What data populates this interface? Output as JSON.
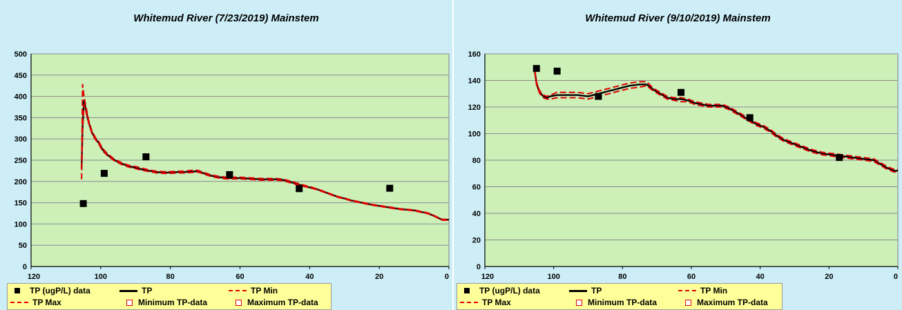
{
  "chart_data": [
    {
      "type": "line",
      "title": "Whitemud River (7/23/2019) Mainstem",
      "xlim": [
        120,
        0
      ],
      "ylim": [
        0,
        500
      ],
      "x_ticks": [
        "120",
        "100",
        "80",
        "60",
        "40",
        "20",
        "0"
      ],
      "y_ticks": [
        "0",
        "50",
        "100",
        "150",
        "200",
        "250",
        "300",
        "350",
        "400",
        "450",
        "500"
      ],
      "grid": true,
      "legend_position": "bottom",
      "legend": [
        "TP (ugP/L) data",
        "TP",
        "TP Min",
        "TP Max",
        "Minimum TP-data",
        "Maximum TP-data"
      ],
      "colors": {
        "plot_bg": "#ccf0b8",
        "panel_bg": "#cdeef7",
        "tp": "#000000",
        "tp_minmax": "#e00000",
        "legend_bg": "#ffff99"
      },
      "series": [
        {
          "name": "TP (ugP/L) data",
          "kind": "scatter",
          "x": [
            105,
            99,
            87,
            63,
            43,
            17
          ],
          "y": [
            148,
            219,
            258,
            216,
            183,
            184
          ]
        },
        {
          "name": "TP",
          "kind": "line",
          "x": [
            105.5,
            105.2,
            104.8,
            104.3,
            103.5,
            102.5,
            101.5,
            100.5,
            99.5,
            98,
            96,
            94,
            92,
            90,
            88,
            86,
            84,
            82,
            80,
            78,
            76,
            74,
            72,
            70,
            68,
            66,
            64,
            62,
            60,
            58,
            56,
            54,
            52,
            50,
            48,
            46,
            44,
            42,
            40,
            38,
            36,
            34,
            32,
            30,
            28,
            25,
            22,
            18,
            14,
            10,
            6,
            4,
            2,
            0
          ],
          "y": [
            230,
            330,
            390,
            370,
            340,
            315,
            300,
            290,
            275,
            262,
            250,
            242,
            236,
            232,
            228,
            225,
            222,
            221,
            221,
            222,
            222,
            223,
            224,
            218,
            213,
            210,
            208,
            208,
            208,
            207,
            206,
            205,
            205,
            205,
            204,
            200,
            195,
            190,
            186,
            182,
            176,
            170,
            164,
            160,
            155,
            150,
            145,
            140,
            135,
            132,
            125,
            118,
            110,
            110
          ]
        },
        {
          "name": "TP Min",
          "kind": "line",
          "x": [
            105.5,
            105.2,
            104.8,
            104.3,
            103.5,
            102.5,
            101.5,
            100.5,
            99.5,
            98,
            96,
            94,
            92,
            90,
            88,
            86,
            84,
            82,
            80,
            78,
            76,
            74,
            72,
            70,
            68,
            66,
            64,
            62,
            60,
            58,
            56,
            54,
            52,
            50,
            48,
            46,
            44,
            42,
            40,
            38,
            36,
            34,
            32,
            30,
            28,
            25,
            22,
            18,
            14,
            10,
            6,
            4,
            2,
            0
          ],
          "y": [
            205,
            320,
            380,
            365,
            338,
            312,
            298,
            287,
            272,
            260,
            248,
            240,
            234,
            230,
            226,
            223,
            220,
            219,
            219,
            220,
            220,
            221,
            222,
            216,
            211,
            208,
            206,
            206,
            206,
            205,
            204,
            203,
            203,
            203,
            202,
            198,
            193,
            189,
            185,
            181,
            175,
            169,
            163,
            159,
            154,
            149,
            144,
            139,
            134,
            131,
            124,
            117,
            109,
            109
          ]
        },
        {
          "name": "TP Max",
          "kind": "line",
          "x": [
            105.5,
            105.2,
            104.8,
            104.3,
            103.5,
            102.5,
            101.5,
            100.5,
            99.5,
            98,
            96,
            94,
            92,
            90,
            88,
            86,
            84,
            82,
            80,
            78,
            76,
            74,
            72,
            70,
            68,
            66,
            64,
            62,
            60,
            58,
            56,
            54,
            52,
            50,
            48,
            46,
            44,
            42,
            40,
            38,
            36,
            34,
            32,
            30,
            28,
            25,
            22,
            18,
            14,
            10,
            6,
            4,
            2,
            0
          ],
          "y": [
            230,
            428,
            400,
            378,
            345,
            318,
            303,
            293,
            278,
            265,
            252,
            244,
            238,
            235,
            231,
            227,
            224,
            223,
            223,
            224,
            224,
            226,
            226,
            220,
            215,
            212,
            210,
            210,
            210,
            209,
            208,
            207,
            207,
            207,
            206,
            202,
            197,
            192,
            188,
            183,
            177,
            171,
            165,
            161,
            156,
            151,
            146,
            141,
            136,
            133,
            126,
            119,
            111,
            111
          ]
        }
      ]
    },
    {
      "type": "line",
      "title": "Whitemud River (9/10/2019) Mainstem",
      "xlim": [
        120,
        0
      ],
      "ylim": [
        0,
        160
      ],
      "x_ticks": [
        "120",
        "100",
        "80",
        "60",
        "40",
        "20",
        "0"
      ],
      "y_ticks": [
        "0",
        "20",
        "40",
        "60",
        "80",
        "100",
        "120",
        "140",
        "160"
      ],
      "grid": true,
      "legend_position": "bottom",
      "legend": [
        "TP (ugP/L) data",
        "TP",
        "TP Min",
        "TP Max",
        "Minimum TP-data",
        "Maximum TP-data"
      ],
      "colors": {
        "plot_bg": "#ccf0b8",
        "panel_bg": "#cdeef7",
        "tp": "#000000",
        "tp_minmax": "#e00000",
        "legend_bg": "#ffff99"
      },
      "series": [
        {
          "name": "TP (ugP/L) data",
          "kind": "scatter",
          "x": [
            105,
            99,
            87,
            63,
            43,
            17
          ],
          "y": [
            149,
            147,
            128,
            131,
            112,
            82
          ]
        },
        {
          "name": "TP",
          "kind": "line",
          "x": [
            105.5,
            105,
            104.5,
            104,
            103,
            102,
            101,
            99,
            96,
            93,
            90,
            87,
            84,
            81,
            78,
            75,
            73,
            71,
            69,
            67,
            65,
            63,
            61,
            59,
            57,
            55,
            53,
            51,
            49,
            47,
            45,
            43,
            41,
            39,
            37,
            35,
            33,
            31,
            29,
            27,
            25,
            22,
            19,
            16,
            13,
            10,
            7,
            5,
            3,
            1,
            0
          ],
          "y": [
            147,
            138,
            134,
            131,
            128,
            127,
            128,
            129,
            129,
            129,
            128,
            130,
            132,
            134,
            136,
            137,
            137,
            133,
            130,
            127,
            126,
            126,
            125,
            123,
            122,
            121,
            121,
            121,
            119,
            116,
            113,
            110,
            107,
            105,
            102,
            98,
            95,
            93,
            91,
            89,
            87,
            85,
            84,
            83,
            82,
            81,
            80,
            77,
            74,
            72,
            72
          ]
        },
        {
          "name": "TP Min",
          "kind": "line",
          "x": [
            105.5,
            105,
            104.5,
            104,
            103,
            102,
            101,
            99,
            96,
            93,
            90,
            87,
            84,
            81,
            78,
            75,
            73,
            71,
            69,
            67,
            65,
            63,
            61,
            59,
            57,
            55,
            53,
            51,
            49,
            47,
            45,
            43,
            41,
            39,
            37,
            35,
            33,
            31,
            29,
            27,
            25,
            22,
            19,
            16,
            13,
            10,
            7,
            5,
            3,
            1,
            0
          ],
          "y": [
            146,
            137,
            133,
            130,
            127,
            126,
            126,
            127,
            127,
            127,
            126,
            128,
            130,
            132,
            134,
            135,
            136,
            132,
            129,
            126,
            125,
            124,
            124,
            122,
            121,
            120,
            120,
            120,
            118,
            115,
            112,
            109,
            106,
            104,
            101,
            97,
            94,
            92,
            90,
            88,
            86,
            84,
            83,
            82,
            81,
            80,
            79,
            76,
            73,
            71,
            71
          ]
        },
        {
          "name": "TP Max",
          "kind": "line",
          "x": [
            105.5,
            105,
            104.5,
            104,
            103,
            102,
            101,
            99,
            96,
            93,
            90,
            87,
            84,
            81,
            78,
            75,
            73,
            71,
            69,
            67,
            65,
            63,
            61,
            59,
            57,
            55,
            53,
            51,
            49,
            47,
            45,
            43,
            41,
            39,
            37,
            35,
            33,
            31,
            29,
            27,
            25,
            22,
            19,
            16,
            13,
            10,
            7,
            5,
            3,
            1,
            0
          ],
          "y": [
            148,
            139,
            135,
            132,
            129,
            128,
            129,
            131,
            131,
            131,
            130,
            132,
            134,
            136,
            138,
            139,
            139,
            134,
            131,
            128,
            127,
            127,
            126,
            124,
            123,
            122,
            122,
            122,
            120,
            117,
            114,
            111,
            108,
            106,
            103,
            99,
            96,
            94,
            92,
            90,
            88,
            86,
            85,
            84,
            83,
            82,
            81,
            78,
            75,
            73,
            73
          ]
        }
      ]
    }
  ]
}
